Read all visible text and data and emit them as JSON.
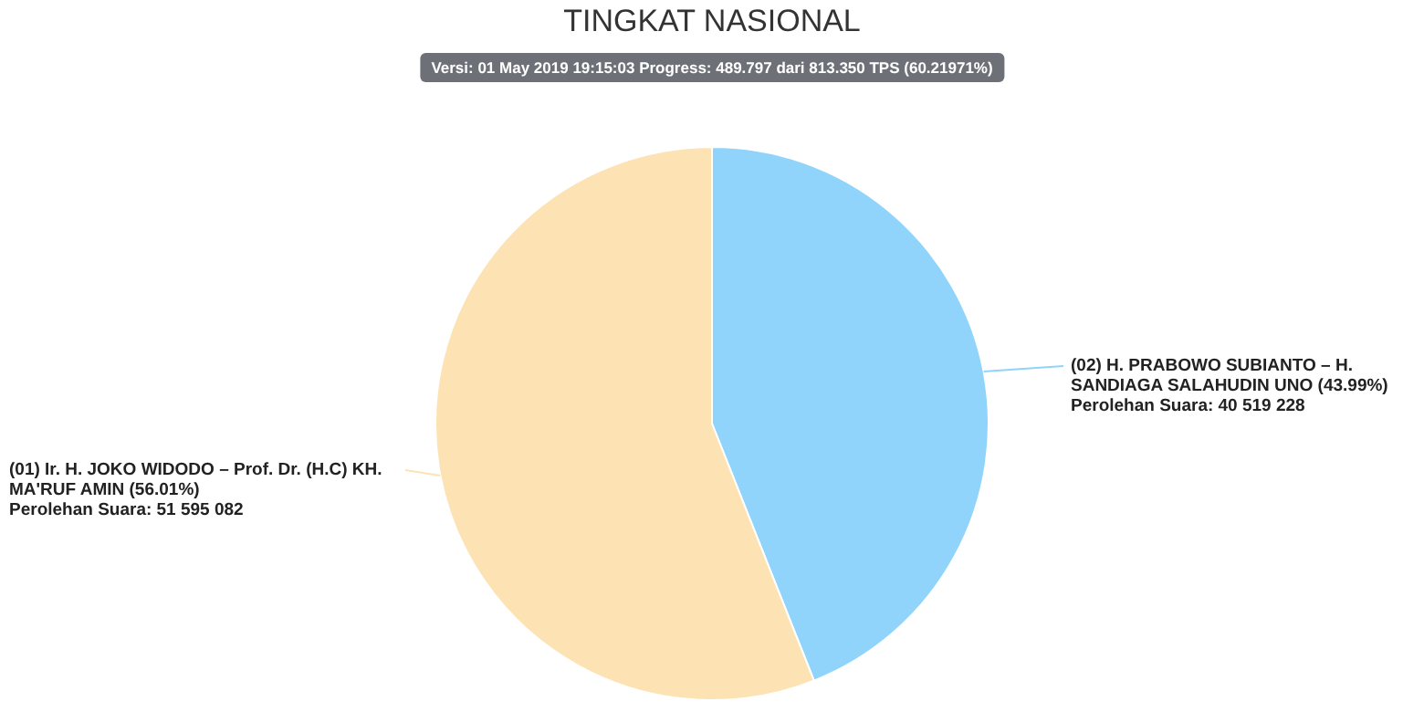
{
  "chart_data": {
    "type": "pie",
    "title": "TINGKAT NASIONAL",
    "subtitle": "Versi: 01 May 2019 19:15:03 Progress: 489.797 dari 813.350 TPS (60.21971%)",
    "categories": [
      "(02) H. PRABOWO SUBIANTO – H. SANDIAGA SALAHUDIN UNO (43.99%)",
      "(01) Ir. H. JOKO WIDODO – Prof. Dr. (H.C) KH. MA'RUF AMIN (56.01%)"
    ],
    "values": [
      40519228,
      51595082
    ],
    "colors": [
      "#90d4fb",
      "#fde3b3"
    ],
    "value_labels": [
      "Perolehan Suara: 40 519 228",
      "Perolehan Suara: 51 595 082"
    ]
  }
}
